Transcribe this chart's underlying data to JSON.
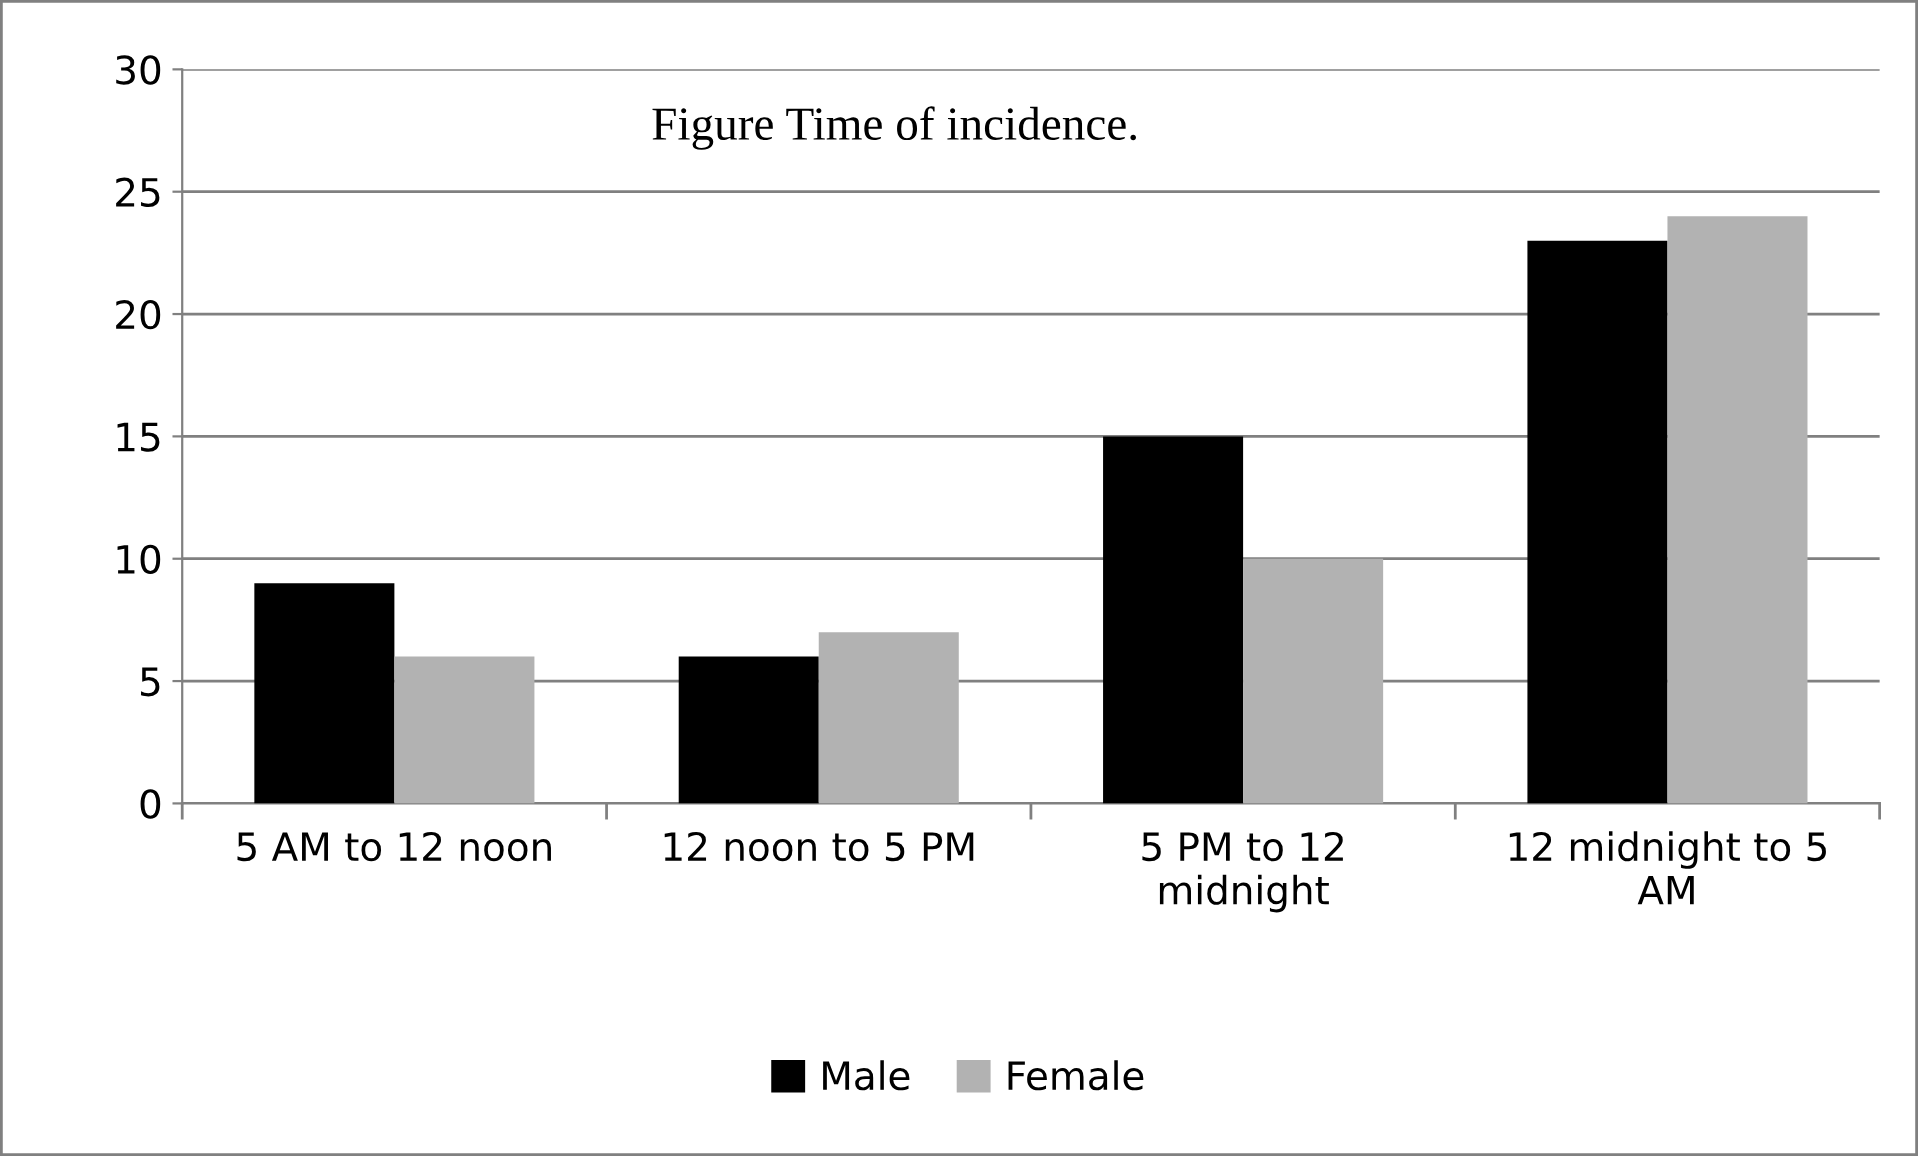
{
  "chart_data": {
    "type": "bar",
    "title": "Figure Time of incidence.",
    "categories": [
      "5 AM to 12 noon",
      "12 noon to 5 PM",
      "5 PM to 12 midnight",
      "12 midnight to 5 AM"
    ],
    "series": [
      {
        "name": "Male",
        "color": "#000000",
        "values": [
          9,
          6,
          15,
          23
        ]
      },
      {
        "name": "Female",
        "color": "#b2b2b2",
        "values": [
          6,
          7,
          10,
          24
        ]
      }
    ],
    "ylim": [
      0,
      30
    ],
    "yticks": [
      0,
      5,
      10,
      15,
      20,
      25,
      30
    ],
    "grid": "y",
    "legend": "bottom"
  }
}
